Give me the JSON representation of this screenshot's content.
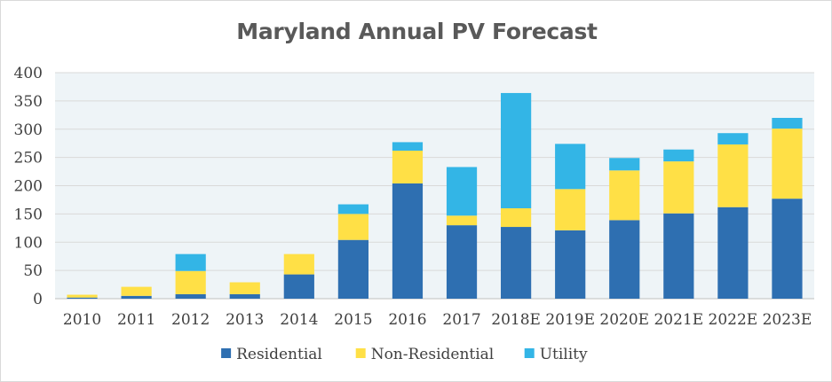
{
  "chart_data": {
    "type": "bar",
    "stacked": true,
    "title": "Maryland Annual PV Forecast",
    "xlabel": "",
    "ylabel": "",
    "ylim": [
      0,
      400
    ],
    "yticks": [
      0,
      50,
      100,
      150,
      200,
      250,
      300,
      350,
      400
    ],
    "grid": true,
    "legend_position": "bottom",
    "categories": [
      "2010",
      "2011",
      "2012",
      "2013",
      "2014",
      "2015",
      "2016",
      "2017",
      "2018E",
      "2019E",
      "2020E",
      "2021E",
      "2022E",
      "2023E"
    ],
    "series": [
      {
        "name": "Residential",
        "color": "#2e6fb1",
        "values": [
          2,
          5,
          8,
          8,
          43,
          104,
          204,
          130,
          127,
          121,
          139,
          151,
          162,
          177
        ]
      },
      {
        "name": "Non-Residential",
        "color": "#ffe046",
        "values": [
          5,
          16,
          41,
          21,
          36,
          46,
          58,
          17,
          33,
          73,
          88,
          92,
          111,
          124
        ]
      },
      {
        "name": "Utility",
        "color": "#33b5e6",
        "values": [
          0,
          0,
          30,
          0,
          0,
          17,
          15,
          86,
          204,
          80,
          22,
          21,
          20,
          19
        ]
      }
    ]
  }
}
